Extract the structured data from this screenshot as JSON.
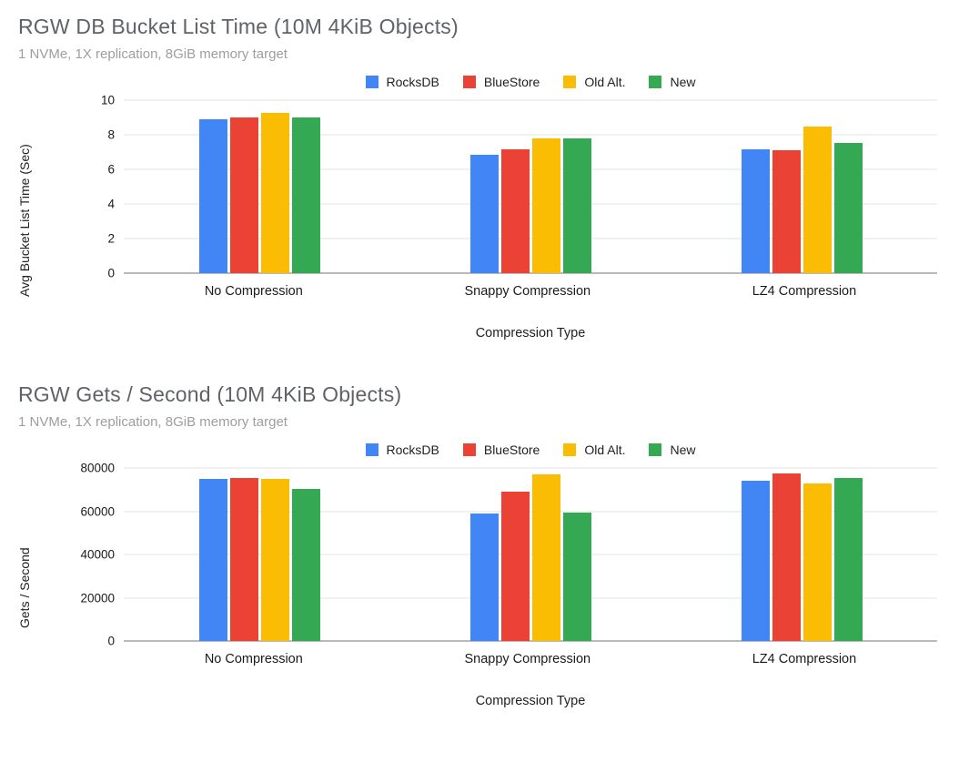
{
  "charts": [
    {
      "title": "RGW DB Bucket List Time (10M 4KiB Objects)",
      "subtitle": "1 NVMe, 1X replication, 8GiB memory target",
      "chart_data": {
        "type": "bar",
        "categories": [
          "No Compression",
          "Snappy Compression",
          "LZ4 Compression"
        ],
        "series": [
          {
            "name": "RocksDB",
            "color": "#4285F4",
            "values": [
              8.9,
              6.85,
              7.15
            ]
          },
          {
            "name": "BlueStore",
            "color": "#EA4335",
            "values": [
              9.0,
              7.15,
              7.1
            ]
          },
          {
            "name": "Old Alt.",
            "color": "#FBBC04",
            "values": [
              9.25,
              7.8,
              8.5
            ]
          },
          {
            "name": "New",
            "color": "#34A853",
            "values": [
              9.0,
              7.8,
              7.55
            ]
          }
        ],
        "title": "RGW DB Bucket List Time (10M 4KiB Objects)",
        "xlabel": "Compression Type",
        "ylabel": "Avg Bucket List Time (Sec)",
        "ylim": [
          0,
          10
        ],
        "yticks": [
          0,
          2,
          4,
          6,
          8,
          10
        ],
        "grid": true,
        "legend_position": "top"
      }
    },
    {
      "title": "RGW Gets / Second (10M 4KiB Objects)",
      "subtitle": "1 NVMe, 1X replication, 8GiB memory target",
      "chart_data": {
        "type": "bar",
        "categories": [
          "No Compression",
          "Snappy Compression",
          "LZ4 Compression"
        ],
        "series": [
          {
            "name": "RocksDB",
            "color": "#4285F4",
            "values": [
              75000,
              59000,
              74000
            ]
          },
          {
            "name": "BlueStore",
            "color": "#EA4335",
            "values": [
              75500,
              69000,
              77500
            ]
          },
          {
            "name": "Old Alt.",
            "color": "#FBBC04",
            "values": [
              75000,
              77000,
              73000
            ]
          },
          {
            "name": "New",
            "color": "#34A853",
            "values": [
              70500,
              59500,
              75500
            ]
          }
        ],
        "title": "RGW Gets / Second (10M 4KiB Objects)",
        "xlabel": "Compression Type",
        "ylabel": "Gets / Second",
        "ylim": [
          0,
          80000
        ],
        "yticks": [
          0,
          20000,
          40000,
          60000,
          80000
        ],
        "grid": true,
        "legend_position": "top"
      }
    }
  ]
}
